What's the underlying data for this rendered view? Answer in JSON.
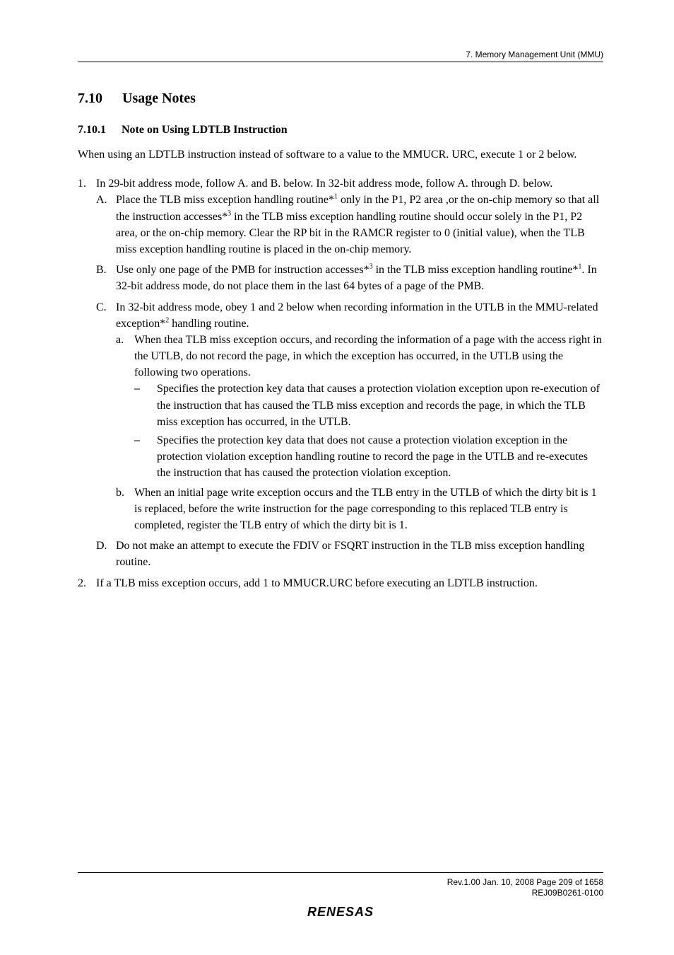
{
  "header": {
    "text": "7.   Memory Management Unit (MMU)"
  },
  "section": {
    "h2_num": "7.10",
    "h2_title": "Usage Notes",
    "h3_num": "7.10.1",
    "h3_title": "Note on Using LDTLB Instruction",
    "intro": "When using an LDTLB instruction instead of software to a value to the MMUCR. URC, execute 1 or 2 below.",
    "item1_marker": "1.",
    "item1_text": "In 29-bit address mode, follow A. and B. below. In 32-bit address mode, follow A. through D. below.",
    "A_marker": "A.",
    "A_text_1": "Place the TLB miss exception handling routine*",
    "A_sup_1": "1",
    "A_text_2": " only in the P1, P2 area ,or the on-chip memory so that all the instruction accesses*",
    "A_sup_2": "3",
    "A_text_3": " in the TLB miss exception handling routine should occur solely in the P1, P2 area, or the on-chip memory. Clear the RP bit in the RAMCR register to 0 (initial value), when the TLB miss exception handling routine is placed in the on-chip memory.",
    "B_marker": "B.",
    "B_text_1": "Use only one page of the PMB for instruction accesses*",
    "B_sup_1": "3",
    "B_text_2": " in the TLB miss exception handling routine*",
    "B_sup_2": "1",
    "B_text_3": ". In 32-bit address mode, do not place them in the last 64 bytes of a page of the PMB.",
    "C_marker": "C.",
    "C_text_1": "In 32-bit address mode, obey 1 and 2 below when recording information in the UTLB in the MMU-related exception*",
    "C_sup_1": "2",
    "C_text_2": " handling routine.",
    "a_marker": "a.",
    "a_text": "When thea TLB miss exception occurs, and recording the information of a page with the access right in the UTLB, do not record the page, in which the exception has occurred, in the UTLB using the following two operations.",
    "dash1_marker": "⎯",
    "dash1_text": "Specifies the protection key data that causes a protection violation exception upon re-execution of the instruction that has caused the TLB miss exception and records the page, in which the TLB miss exception has occurred, in the UTLB.",
    "dash2_marker": "⎯",
    "dash2_text": "Specifies the protection key data that does not cause a protection violation exception in the protection violation exception handling routine to record the page in the UTLB and re-executes the instruction that has caused the protection violation exception.",
    "b_marker": "b.",
    "b_text": "When an initial page write exception occurs and the TLB entry in the UTLB of which the dirty bit is 1 is replaced, before the write instruction for the page corresponding to this replaced TLB entry is completed, register the TLB entry of which the dirty bit is 1.",
    "D_marker": "D.",
    "D_text": "Do not make an attempt to execute the FDIV or FSQRT instruction in the TLB miss exception handling routine.",
    "item2_marker": "2.",
    "item2_text": "If a TLB miss exception occurs, add 1 to MMUCR.URC before executing an LDTLB instruction."
  },
  "footer": {
    "line1": "Rev.1.00  Jan. 10, 2008  Page 209 of 1658",
    "line2": "REJ09B0261-0100",
    "logo": "RENESAS"
  }
}
